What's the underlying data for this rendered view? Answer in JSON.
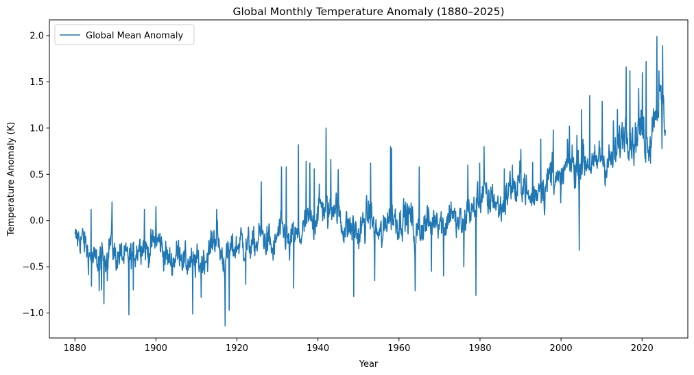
{
  "chart_data": {
    "type": "line",
    "title": "Global Monthly Temperature Anomaly (1880–2025)",
    "xlabel": "Year",
    "ylabel": "Temperature Anomaly (K)",
    "xlim": [
      1873.7,
      2031.3
    ],
    "ylim": [
      -1.27,
      2.17
    ],
    "x_ticks": [
      1880,
      1900,
      1920,
      1940,
      1960,
      1980,
      2000,
      2020
    ],
    "y_ticks": [
      -1.0,
      -0.5,
      0.0,
      0.5,
      1.0,
      1.5,
      2.0
    ],
    "y_tick_labels": [
      "−1.0",
      "−0.5",
      "0.0",
      "0.5",
      "1.0",
      "1.5",
      "2.0"
    ],
    "legend_position": "upper-left",
    "grid": false,
    "series": [
      {
        "name": "Global Mean Anomaly",
        "color": "#1f77b4",
        "x_start": 1880,
        "x_end": 2025.75,
        "anchors": [
          [
            1880,
            -0.22
          ],
          [
            1881,
            -0.18
          ],
          [
            1882,
            -0.2
          ],
          [
            1883,
            -0.32
          ],
          [
            1884,
            -0.42
          ],
          [
            1885,
            -0.44
          ],
          [
            1886,
            -0.42
          ],
          [
            1887,
            -0.42
          ],
          [
            1888,
            -0.34
          ],
          [
            1889,
            -0.2
          ],
          [
            1890,
            -0.4
          ],
          [
            1891,
            -0.37
          ],
          [
            1892,
            -0.4
          ],
          [
            1893,
            -0.42
          ],
          [
            1894,
            -0.4
          ],
          [
            1895,
            -0.33
          ],
          [
            1896,
            -0.25
          ],
          [
            1897,
            -0.24
          ],
          [
            1898,
            -0.35
          ],
          [
            1899,
            -0.27
          ],
          [
            1900,
            -0.2
          ],
          [
            1901,
            -0.24
          ],
          [
            1902,
            -0.34
          ],
          [
            1903,
            -0.42
          ],
          [
            1904,
            -0.46
          ],
          [
            1905,
            -0.37
          ],
          [
            1906,
            -0.3
          ],
          [
            1907,
            -0.46
          ],
          [
            1908,
            -0.45
          ],
          [
            1909,
            -0.48
          ],
          [
            1910,
            -0.45
          ],
          [
            1911,
            -0.46
          ],
          [
            1912,
            -0.39
          ],
          [
            1913,
            -0.38
          ],
          [
            1914,
            -0.2
          ],
          [
            1915,
            -0.15
          ],
          [
            1916,
            -0.36
          ],
          [
            1917,
            -0.46
          ],
          [
            1918,
            -0.35
          ],
          [
            1919,
            -0.3
          ],
          [
            1920,
            -0.29
          ],
          [
            1921,
            -0.2
          ],
          [
            1922,
            -0.3
          ],
          [
            1923,
            -0.26
          ],
          [
            1924,
            -0.28
          ],
          [
            1925,
            -0.24
          ],
          [
            1926,
            -0.12
          ],
          [
            1927,
            -0.22
          ],
          [
            1928,
            -0.22
          ],
          [
            1929,
            -0.36
          ],
          [
            1930,
            -0.15
          ],
          [
            1931,
            -0.1
          ],
          [
            1932,
            -0.15
          ],
          [
            1933,
            -0.3
          ],
          [
            1934,
            -0.14
          ],
          [
            1935,
            -0.2
          ],
          [
            1936,
            -0.15
          ],
          [
            1937,
            -0.02
          ],
          [
            1938,
            -0.01
          ],
          [
            1939,
            -0.03
          ],
          [
            1940,
            0.12
          ],
          [
            1941,
            0.18
          ],
          [
            1942,
            0.08
          ],
          [
            1943,
            0.1
          ],
          [
            1944,
            0.22
          ],
          [
            1945,
            0.1
          ],
          [
            1946,
            -0.06
          ],
          [
            1947,
            -0.06
          ],
          [
            1948,
            -0.08
          ],
          [
            1949,
            -0.08
          ],
          [
            1950,
            -0.17
          ],
          [
            1951,
            -0.06
          ],
          [
            1952,
            0.01
          ],
          [
            1953,
            0.08
          ],
          [
            1954,
            -0.12
          ],
          [
            1955,
            -0.14
          ],
          [
            1956,
            -0.2
          ],
          [
            1957,
            0.05
          ],
          [
            1958,
            0.06
          ],
          [
            1959,
            0.03
          ],
          [
            1960,
            -0.03
          ],
          [
            1961,
            0.06
          ],
          [
            1962,
            0.03
          ],
          [
            1963,
            0.05
          ],
          [
            1964,
            -0.2
          ],
          [
            1965,
            -0.1
          ],
          [
            1966,
            -0.05
          ],
          [
            1967,
            -0.02
          ],
          [
            1968,
            -0.07
          ],
          [
            1969,
            0.07
          ],
          [
            1970,
            0.03
          ],
          [
            1971,
            -0.08
          ],
          [
            1972,
            0.01
          ],
          [
            1973,
            0.16
          ],
          [
            1974,
            -0.07
          ],
          [
            1975,
            -0.01
          ],
          [
            1976,
            -0.1
          ],
          [
            1977,
            0.18
          ],
          [
            1978,
            0.07
          ],
          [
            1979,
            0.16
          ],
          [
            1980,
            0.26
          ],
          [
            1981,
            0.32
          ],
          [
            1982,
            0.14
          ],
          [
            1983,
            0.31
          ],
          [
            1984,
            0.16
          ],
          [
            1985,
            0.12
          ],
          [
            1986,
            0.18
          ],
          [
            1987,
            0.33
          ],
          [
            1988,
            0.4
          ],
          [
            1989,
            0.27
          ],
          [
            1990,
            0.45
          ],
          [
            1991,
            0.41
          ],
          [
            1992,
            0.22
          ],
          [
            1993,
            0.24
          ],
          [
            1994,
            0.31
          ],
          [
            1995,
            0.45
          ],
          [
            1996,
            0.33
          ],
          [
            1997,
            0.46
          ],
          [
            1998,
            0.61
          ],
          [
            1999,
            0.38
          ],
          [
            2000,
            0.39
          ],
          [
            2001,
            0.54
          ],
          [
            2002,
            0.63
          ],
          [
            2003,
            0.62
          ],
          [
            2004,
            0.54
          ],
          [
            2005,
            0.68
          ],
          [
            2006,
            0.64
          ],
          [
            2007,
            0.66
          ],
          [
            2008,
            0.54
          ],
          [
            2009,
            0.64
          ],
          [
            2010,
            0.72
          ],
          [
            2011,
            0.61
          ],
          [
            2012,
            0.64
          ],
          [
            2013,
            0.68
          ],
          [
            2014,
            0.75
          ],
          [
            2015,
            0.9
          ],
          [
            2016,
            1.01
          ],
          [
            2017,
            0.92
          ],
          [
            2018,
            0.85
          ],
          [
            2019,
            0.98
          ],
          [
            2020,
            1.01
          ],
          [
            2021,
            0.85
          ],
          [
            2022,
            0.89
          ],
          [
            2023,
            1.17
          ],
          [
            2024,
            1.28
          ],
          [
            2025,
            1.3
          ],
          [
            2025.75,
            0.98
          ]
        ],
        "extremes": [
          [
            1884.1,
            -0.71
          ],
          [
            1886.0,
            -0.76
          ],
          [
            1886.6,
            -0.75
          ],
          [
            1887.2,
            -0.9
          ],
          [
            1888.0,
            -0.65
          ],
          [
            1889.2,
            0.2
          ],
          [
            1884.0,
            0.12
          ],
          [
            1893.3,
            -1.02
          ],
          [
            1894.4,
            -0.75
          ],
          [
            1900.0,
            0.15
          ],
          [
            1897.2,
            0.12
          ],
          [
            1909.1,
            -1.01
          ],
          [
            1911.2,
            -0.83
          ],
          [
            1915.0,
            0.12
          ],
          [
            1917.1,
            -1.14
          ],
          [
            1918.1,
            -0.97
          ],
          [
            1922.2,
            -0.69
          ],
          [
            1926.0,
            0.42
          ],
          [
            1931.0,
            0.58
          ],
          [
            1932.2,
            0.58
          ],
          [
            1934.0,
            -0.73
          ],
          [
            1935.2,
            0.82
          ],
          [
            1937.1,
            0.64
          ],
          [
            1938.0,
            0.62
          ],
          [
            1939.1,
            0.56
          ],
          [
            1942.0,
            1.0
          ],
          [
            1943.2,
            0.66
          ],
          [
            1945.0,
            0.55
          ],
          [
            1948.8,
            -0.82
          ],
          [
            1953.0,
            0.62
          ],
          [
            1954.0,
            -0.65
          ],
          [
            1957.9,
            0.8
          ],
          [
            1958.2,
            0.78
          ],
          [
            1964.0,
            -0.76
          ],
          [
            1965.0,
            0.58
          ],
          [
            1968.0,
            -0.55
          ],
          [
            1971.0,
            -0.6
          ],
          [
            1976.0,
            -0.5
          ],
          [
            1977.0,
            0.6
          ],
          [
            1979.0,
            -0.81
          ],
          [
            1979.9,
            0.62
          ],
          [
            1981.0,
            0.8
          ],
          [
            1986.0,
            0.56
          ],
          [
            1988.0,
            0.6
          ],
          [
            1990.1,
            0.77
          ],
          [
            1993.0,
            0.63
          ],
          [
            1995.0,
            0.88
          ],
          [
            1998.1,
            0.98
          ],
          [
            2002.1,
            1.02
          ],
          [
            2003.9,
            0.92
          ],
          [
            2004.5,
            -0.32
          ],
          [
            2005.1,
            1.2
          ],
          [
            2007.1,
            1.35
          ],
          [
            2010.2,
            1.29
          ],
          [
            2012.9,
            1.08
          ],
          [
            2013.9,
            1.2
          ],
          [
            2016.1,
            1.66
          ],
          [
            2017.0,
            1.62
          ],
          [
            2019.2,
            1.43
          ],
          [
            2020.1,
            1.6
          ],
          [
            2021.0,
            1.72
          ],
          [
            2023.7,
            1.99
          ],
          [
            2024.2,
            1.62
          ],
          [
            2025.1,
            1.89
          ],
          [
            2024.9,
            0.78
          ],
          [
            2022.1,
            0.62
          ],
          [
            2020.9,
            0.63
          ]
        ]
      }
    ]
  }
}
